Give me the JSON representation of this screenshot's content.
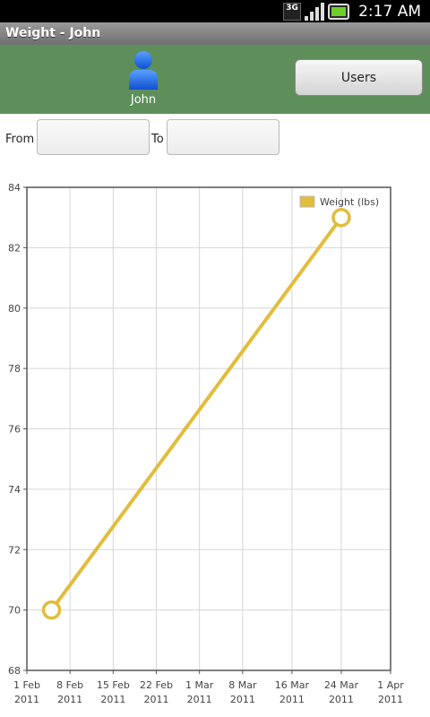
{
  "status_bar": {
    "time": "2:17 AM",
    "network_label": "3G"
  },
  "title_bar": {
    "title": "Weight - John"
  },
  "header": {
    "user_name": "John",
    "users_button": "Users",
    "background_color": "#5e8f5b"
  },
  "date_range": {
    "from_label": "From",
    "to_label": "To",
    "from_value": "",
    "to_value": ""
  },
  "chart_data": {
    "type": "line",
    "title": "",
    "xlabel": "",
    "ylabel": "",
    "ylim": [
      68,
      84
    ],
    "yticks": [
      68,
      70,
      72,
      74,
      76,
      78,
      80,
      82,
      84
    ],
    "xlim": [
      "2011-02-01",
      "2011-04-01"
    ],
    "xticks": [
      {
        "date": "2011-02-01",
        "line1": "1 Feb",
        "line2": "2011"
      },
      {
        "date": "2011-02-08",
        "line1": "8 Feb",
        "line2": "2011"
      },
      {
        "date": "2011-02-15",
        "line1": "15 Feb",
        "line2": "2011"
      },
      {
        "date": "2011-02-22",
        "line1": "22 Feb",
        "line2": "2011"
      },
      {
        "date": "2011-03-01",
        "line1": "1 Mar",
        "line2": "2011"
      },
      {
        "date": "2011-03-08",
        "line1": "8 Mar",
        "line2": "2011"
      },
      {
        "date": "2011-03-16",
        "line1": "16 Mar",
        "line2": "2011"
      },
      {
        "date": "2011-03-24",
        "line1": "24 Mar",
        "line2": "2011"
      },
      {
        "date": "2011-04-01",
        "line1": "1 Apr",
        "line2": "2011"
      }
    ],
    "grid": true,
    "legend_position": "top-right",
    "series": [
      {
        "name": "Weight (lbs)",
        "color": "#e2bd3c",
        "points": [
          {
            "x": "2011-02-05",
            "y": 70
          },
          {
            "x": "2011-03-24",
            "y": 83
          }
        ]
      }
    ]
  }
}
